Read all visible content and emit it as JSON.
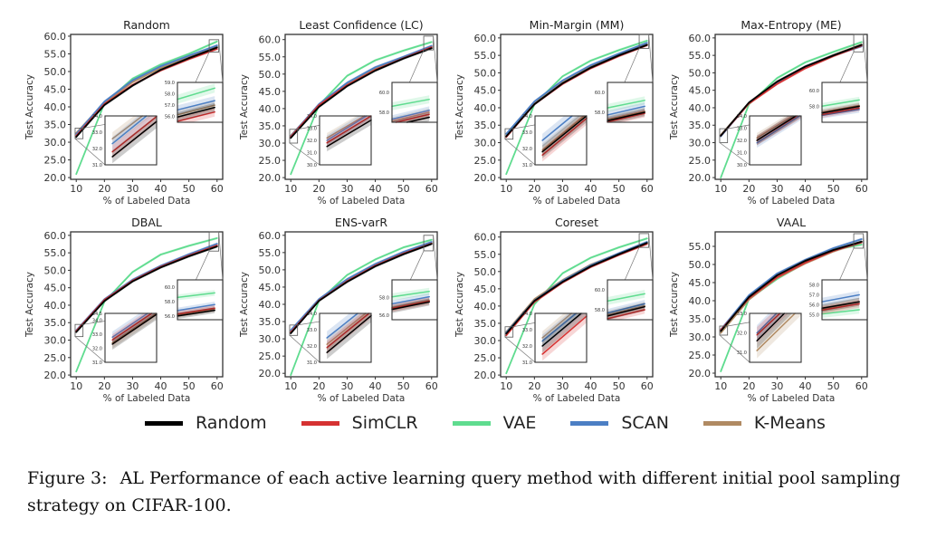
{
  "colors": {
    "Random": "#000000",
    "SimCLR": "#d63232",
    "VAE": "#5fdc8f",
    "SCAN": "#4c7fc4",
    "K-Means": "#b08a62"
  },
  "legend": [
    "Random",
    "SimCLR",
    "VAE",
    "SCAN",
    "K-Means"
  ],
  "caption": {
    "label": "Figure 3:",
    "text": "AL Performance of each active learning query method with different initial pool sampling strategy on CIFAR-100."
  },
  "chart_data": [
    {
      "type": "line",
      "title": "Random",
      "xlabel": "% of Labeled Data",
      "ylabel": "Test Accuracy",
      "x": [
        10,
        20,
        30,
        40,
        50,
        60
      ],
      "xlim": [
        8,
        62
      ],
      "ylim": [
        19.5,
        60.5
      ],
      "yticks": [
        20,
        25,
        30,
        35,
        40,
        45,
        50,
        55,
        60
      ],
      "inset_low": {
        "ylim": [
          31,
          34
        ],
        "yticks": [
          31,
          32,
          33,
          34
        ]
      },
      "inset_high": {
        "ylim": [
          55.5,
          59
        ],
        "yticks": [
          56,
          57,
          58,
          59
        ]
      },
      "series": [
        {
          "name": "Random",
          "values": [
            31.5,
            40.5,
            46,
            50.5,
            53.8,
            56.8
          ]
        },
        {
          "name": "SimCLR",
          "values": [
            31.8,
            40.8,
            46.2,
            50.3,
            53.5,
            56.4
          ]
        },
        {
          "name": "VAE",
          "values": [
            21,
            41,
            48,
            52,
            55,
            58.5
          ]
        },
        {
          "name": "SCAN",
          "values": [
            32.3,
            41.5,
            47.5,
            51.5,
            54.5,
            57.4
          ]
        },
        {
          "name": "K-Means",
          "values": [
            32.6,
            41.2,
            47,
            51,
            54,
            57
          ]
        }
      ]
    },
    {
      "type": "line",
      "title": "Least Confidence (LC)",
      "xlabel": "% of Labeled Data",
      "ylabel": "Test Accuracy",
      "x": [
        10,
        20,
        30,
        40,
        50,
        60
      ],
      "xlim": [
        8,
        62
      ],
      "ylim": [
        19.5,
        61.5
      ],
      "yticks": [
        20,
        25,
        30,
        35,
        40,
        45,
        50,
        55,
        60
      ],
      "inset_low": {
        "ylim": [
          30,
          34
        ],
        "yticks": [
          30,
          31,
          32,
          33,
          34
        ]
      },
      "inset_high": {
        "ylim": [
          57,
          61
        ],
        "yticks": [
          58,
          60
        ]
      },
      "series": [
        {
          "name": "Random",
          "values": [
            31.5,
            40.5,
            46.5,
            51,
            54.5,
            57.5
          ]
        },
        {
          "name": "SimCLR",
          "values": [
            31.8,
            41,
            46.8,
            51.2,
            54.6,
            57.8
          ]
        },
        {
          "name": "VAE",
          "values": [
            21,
            41,
            49.5,
            54,
            56.8,
            59.3
          ]
        },
        {
          "name": "SCAN",
          "values": [
            32,
            41.3,
            47.5,
            52,
            55,
            58.2
          ]
        },
        {
          "name": "K-Means",
          "values": [
            32.2,
            41,
            47,
            51.5,
            54.8,
            58
          ]
        }
      ]
    },
    {
      "type": "line",
      "title": "Min-Margin (MM)",
      "xlabel": "% of Labeled Data",
      "ylabel": "Test Accuracy",
      "x": [
        10,
        20,
        30,
        40,
        50,
        60
      ],
      "xlim": [
        8,
        62
      ],
      "ylim": [
        19.5,
        61
      ],
      "yticks": [
        20,
        25,
        30,
        35,
        40,
        45,
        50,
        55,
        60
      ],
      "inset_low": {
        "ylim": [
          31,
          34
        ],
        "yticks": [
          31,
          32,
          33,
          34
        ]
      },
      "inset_high": {
        "ylim": [
          57,
          61
        ],
        "yticks": [
          58,
          60
        ]
      },
      "series": [
        {
          "name": "Random",
          "values": [
            31.8,
            41,
            47,
            51.5,
            55,
            58
          ]
        },
        {
          "name": "SimCLR",
          "values": [
            31.6,
            41,
            46.8,
            51.3,
            54.8,
            57.9
          ]
        },
        {
          "name": "VAE",
          "values": [
            21,
            41,
            49,
            53.5,
            56.5,
            59.2
          ]
        },
        {
          "name": "SCAN",
          "values": [
            32.5,
            41.8,
            47.8,
            52.2,
            55.5,
            58.6
          ]
        },
        {
          "name": "K-Means",
          "values": [
            31.9,
            41.2,
            47.2,
            51.8,
            55.2,
            58.1
          ]
        }
      ]
    },
    {
      "type": "line",
      "title": "Max-Entropy (ME)",
      "xlabel": "% of Labeled Data",
      "ylabel": "Test Accuracy",
      "x": [
        10,
        20,
        30,
        40,
        50,
        60
      ],
      "xlim": [
        8,
        62
      ],
      "ylim": [
        19.5,
        61
      ],
      "yticks": [
        20,
        25,
        30,
        35,
        40,
        45,
        50,
        55,
        60
      ],
      "inset_low": {
        "ylim": [
          30,
          34
        ],
        "yticks": [
          30,
          31,
          32,
          33,
          34
        ]
      },
      "inset_high": {
        "ylim": [
          56,
          61
        ],
        "yticks": [
          58,
          60
        ]
      },
      "series": [
        {
          "name": "Random",
          "values": [
            32,
            41.5,
            47.5,
            51.8,
            55,
            58
          ]
        },
        {
          "name": "SimCLR",
          "values": [
            32,
            41.2,
            46.8,
            51.3,
            54.8,
            57.8
          ]
        },
        {
          "name": "VAE",
          "values": [
            20,
            41,
            48.5,
            53,
            56,
            58.8
          ]
        },
        {
          "name": "SCAN",
          "values": [
            31.8,
            41.3,
            47.2,
            51.8,
            55,
            57.6
          ]
        },
        {
          "name": "K-Means",
          "values": [
            32.2,
            41.4,
            47.3,
            51.7,
            55.1,
            58.1
          ]
        }
      ]
    },
    {
      "type": "line",
      "title": "DBAL",
      "xlabel": "% of Labeled Data",
      "ylabel": "Test Accuracy",
      "x": [
        10,
        20,
        30,
        40,
        50,
        60
      ],
      "xlim": [
        8,
        62
      ],
      "ylim": [
        19.5,
        61
      ],
      "yticks": [
        20,
        25,
        30,
        35,
        40,
        45,
        50,
        55,
        60
      ],
      "inset_low": {
        "ylim": [
          31,
          34.5
        ],
        "yticks": [
          31,
          32,
          33,
          34,
          34.5
        ]
      },
      "inset_high": {
        "ylim": [
          55.5,
          61
        ],
        "yticks": [
          56,
          58,
          60
        ]
      },
      "series": [
        {
          "name": "Random",
          "values": [
            32.3,
            41.2,
            46.8,
            50.8,
            54,
            56.8
          ]
        },
        {
          "name": "SimCLR",
          "values": [
            32.6,
            41.5,
            47,
            51,
            54.2,
            57.1
          ]
        },
        {
          "name": "VAE",
          "values": [
            21,
            41,
            49.5,
            54.5,
            57,
            59.2
          ]
        },
        {
          "name": "SCAN",
          "values": [
            32.8,
            41.7,
            47.3,
            51.3,
            54.6,
            57.6
          ]
        },
        {
          "name": "K-Means",
          "values": [
            32.4,
            41.3,
            46.9,
            50.9,
            54.1,
            57
          ]
        }
      ]
    },
    {
      "type": "line",
      "title": "ENS-varR",
      "xlabel": "% of Labeled Data",
      "ylabel": "Test Accuracy",
      "x": [
        10,
        20,
        30,
        40,
        50,
        60
      ],
      "xlim": [
        8,
        62
      ],
      "ylim": [
        19,
        61
      ],
      "yticks": [
        20,
        25,
        30,
        35,
        40,
        45,
        50,
        55,
        60
      ],
      "inset_low": {
        "ylim": [
          31,
          34
        ],
        "yticks": [
          31,
          32,
          33,
          34
        ]
      },
      "inset_high": {
        "ylim": [
          55.5,
          60
        ],
        "yticks": [
          56,
          58
        ]
      },
      "series": [
        {
          "name": "Random",
          "values": [
            31.6,
            41,
            46.5,
            51,
            54.5,
            57.5
          ]
        },
        {
          "name": "SimCLR",
          "values": [
            31.9,
            41.1,
            46.7,
            51.2,
            54.7,
            57.6
          ]
        },
        {
          "name": "VAE",
          "values": [
            19.5,
            41,
            48.5,
            53,
            56.5,
            58.7
          ]
        },
        {
          "name": "SCAN",
          "values": [
            32.5,
            41.5,
            47.3,
            51.7,
            55.2,
            58.1
          ]
        },
        {
          "name": "K-Means",
          "values": [
            32.1,
            41.2,
            46.9,
            51.3,
            54.8,
            57.7
          ]
        }
      ]
    },
    {
      "type": "line",
      "title": "Coreset",
      "xlabel": "% of Labeled Data",
      "ylabel": "Test Accuracy",
      "x": [
        10,
        20,
        30,
        40,
        50,
        60
      ],
      "xlim": [
        8,
        62
      ],
      "ylim": [
        19.5,
        61.5
      ],
      "yticks": [
        20,
        25,
        30,
        35,
        40,
        45,
        50,
        55,
        60
      ],
      "inset_low": {
        "ylim": [
          31,
          34
        ],
        "yticks": [
          31,
          32,
          33,
          34
        ]
      },
      "inset_high": {
        "ylim": [
          57,
          61
        ],
        "yticks": [
          58,
          60
        ]
      },
      "series": [
        {
          "name": "Random",
          "values": [
            32,
            41.5,
            47,
            51.5,
            55,
            58.3
          ]
        },
        {
          "name": "SimCLR",
          "values": [
            31.5,
            41.2,
            46.8,
            51.3,
            54.8,
            58
          ]
        },
        {
          "name": "VAE",
          "values": [
            20.5,
            40.5,
            49.5,
            54,
            57,
            59.6
          ]
        },
        {
          "name": "SCAN",
          "values": [
            32.3,
            41.6,
            47.3,
            51.8,
            55.3,
            58.6
          ]
        },
        {
          "name": "K-Means",
          "values": [
            32.5,
            42,
            47.5,
            52,
            55.2,
            58.4
          ]
        }
      ]
    },
    {
      "type": "line",
      "title": "VAAL",
      "xlabel": "% of Labeled Data",
      "ylabel": "Test Accuracy",
      "x": [
        10,
        20,
        30,
        40,
        50,
        60
      ],
      "xlim": [
        8,
        62
      ],
      "ylim": [
        19,
        59
      ],
      "yticks": [
        20,
        25,
        30,
        35,
        40,
        45,
        50,
        55
      ],
      "inset_low": {
        "ylim": [
          30.5,
          33
        ],
        "yticks": [
          31,
          32,
          33
        ]
      },
      "inset_high": {
        "ylim": [
          54.5,
          58.5
        ],
        "yticks": [
          55,
          56,
          57,
          58
        ]
      },
      "series": [
        {
          "name": "Random",
          "values": [
            31.6,
            41,
            47,
            51,
            54,
            56.3
          ]
        },
        {
          "name": "SimCLR",
          "values": [
            31.9,
            40.7,
            46.5,
            50.5,
            53.8,
            56.1
          ]
        },
        {
          "name": "VAE",
          "values": [
            20.5,
            40.5,
            46,
            50.5,
            54,
            55.5
          ]
        },
        {
          "name": "SCAN",
          "values": [
            32,
            41.5,
            47.5,
            51.3,
            54.5,
            57
          ]
        },
        {
          "name": "K-Means",
          "values": [
            31.1,
            40.3,
            46.3,
            50.3,
            53.6,
            56.3
          ]
        }
      ]
    }
  ]
}
